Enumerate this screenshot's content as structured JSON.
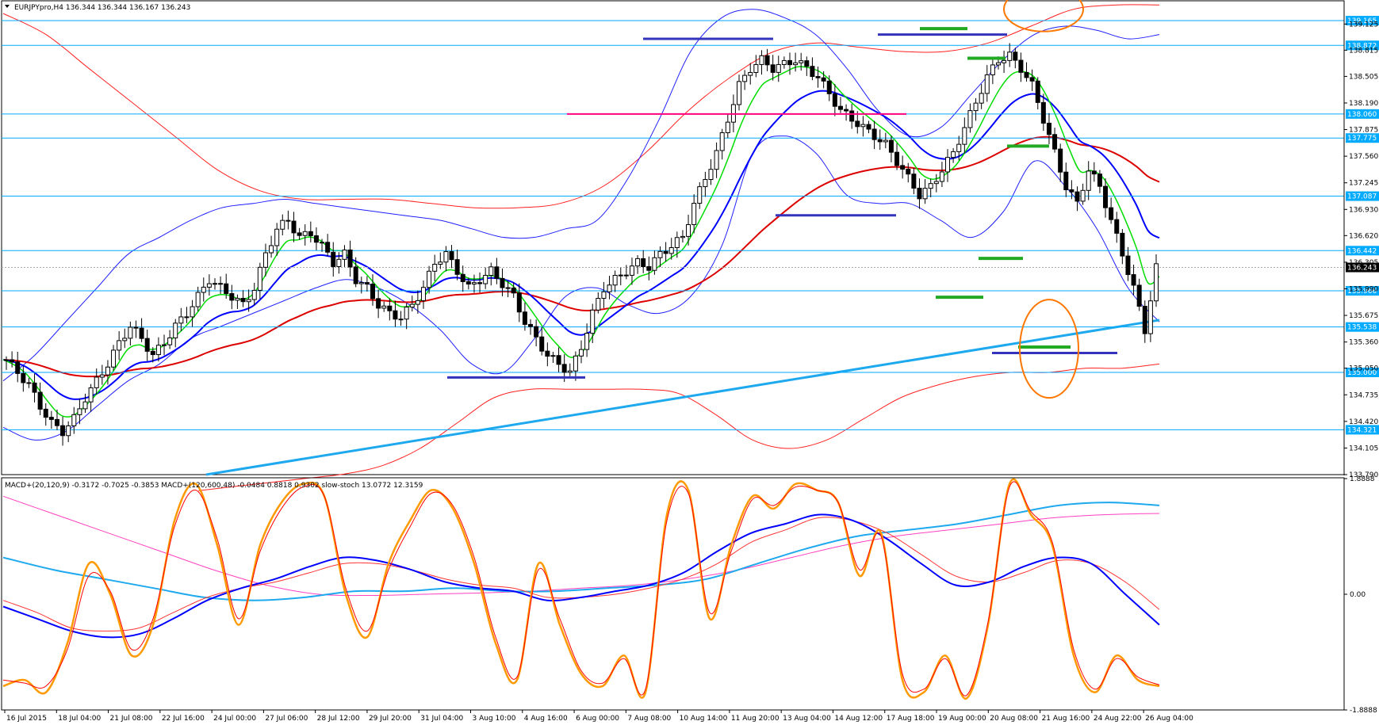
{
  "main_header": "EURJPYpro,H4  136.344 136.344 136.167 136.243",
  "indicator_header": "MACD+(20,120,9) -0.3172 -0.7025 -0.3853  MACD+(120,600,48) -0.0484 0.8818 0.9302  slow-stoch 13.0772 12.3159",
  "colors": {
    "background": "#ffffff",
    "bull_candle": "#ffffff",
    "bear_candle": "#000000",
    "hline": "#00aaff",
    "label_bg": "#00aaff",
    "ema_fast": "#00dd00",
    "ema_mid": "#0000ff",
    "ema_slow": "#dd0000",
    "ema_long": "#1ea9ef",
    "bollinger": "#2020ff",
    "envelope": "#ff2020",
    "support": "#3333bb",
    "target": "#22aa22",
    "pivot": "#ff0080",
    "circle": "#ff7700",
    "macd_fast": "#0000ff",
    "macd_signal": "#ff3333",
    "macd_slow": "#1ea9ef",
    "macd_slow_signal": "#ff40c0",
    "stoch_k": "#ff9900",
    "stoch_d": "#ff0000"
  },
  "chart_data": [
    {
      "type": "candlestick",
      "symbol": "EURJPYpro",
      "timeframe": "H4",
      "ylim": [
        133.79,
        139.4
      ],
      "yticks": [
        139.125,
        138.815,
        138.505,
        138.19,
        137.875,
        137.56,
        137.245,
        136.93,
        136.62,
        136.305,
        135.99,
        135.675,
        135.36,
        135.05,
        134.735,
        134.42,
        134.105,
        133.79
      ],
      "last_price": 136.243,
      "last_price_label": "136.243",
      "level_lines": [
        {
          "value": 139.165,
          "label": "139.165"
        },
        {
          "value": 138.872,
          "label": "138.872"
        },
        {
          "value": 138.06,
          "label": "138.060"
        },
        {
          "value": 137.775,
          "label": "137.775"
        },
        {
          "value": 137.087,
          "label": "137.087"
        },
        {
          "value": 136.442,
          "label": "136.442"
        },
        {
          "value": 135.966,
          "label": "135.966"
        },
        {
          "value": 135.538,
          "label": "135.538"
        },
        {
          "value": 135.0,
          "label": "135.000"
        },
        {
          "value": 134.321,
          "label": "134.321"
        }
      ],
      "x_labels": [
        "16 Jul 2015",
        "18 Jul 04:00",
        "21 Jul 08:00",
        "22 Jul 16:00",
        "24 Jul 00:00",
        "27 Jul 06:00",
        "28 Jul 12:00",
        "29 Jul 20:00",
        "31 Jul 04:00",
        "3 Aug 10:00",
        "4 Aug 16:00",
        "6 Aug 00:00",
        "7 Aug 08:00",
        "10 Aug 14:00",
        "11 Aug 20:00",
        "13 Aug 04:00",
        "14 Aug 12:00",
        "17 Aug 18:00",
        "19 Aug 00:00",
        "20 Aug 08:00",
        "21 Aug 16:00",
        "24 Aug 22:00",
        "26 Aug 04:00"
      ],
      "close_path": [
        135.15,
        135.0,
        134.85,
        134.6,
        134.4,
        134.3,
        134.45,
        134.7,
        134.9,
        135.1,
        135.35,
        135.55,
        135.4,
        135.2,
        135.35,
        135.55,
        135.7,
        135.9,
        136.1,
        136.0,
        135.9,
        135.8,
        136.0,
        136.4,
        136.7,
        136.8,
        136.6,
        136.65,
        136.5,
        136.3,
        136.4,
        136.1,
        136.0,
        135.8,
        135.7,
        135.65,
        135.8,
        136.0,
        136.3,
        136.4,
        136.2,
        136.0,
        136.1,
        136.2,
        136.05,
        135.9,
        135.6,
        135.4,
        135.2,
        135.1,
        135.0,
        135.3,
        135.7,
        136.0,
        136.1,
        136.2,
        136.3,
        136.25,
        136.4,
        136.5,
        136.6,
        137.0,
        137.3,
        137.6,
        138.0,
        138.4,
        138.6,
        138.7,
        138.6,
        138.65,
        138.7,
        138.6,
        138.5,
        138.3,
        138.1,
        138.0,
        137.9,
        137.8,
        137.7,
        137.5,
        137.3,
        137.1,
        137.2,
        137.4,
        137.6,
        137.9,
        138.2,
        138.5,
        138.7,
        138.75,
        138.6,
        138.4,
        138.0,
        137.6,
        137.2,
        137.0,
        137.4,
        137.2,
        136.8,
        136.4,
        136.0,
        135.5,
        136.24
      ],
      "bollinger_upper": [
        134.9,
        135.2,
        135.6,
        136.0,
        136.4,
        136.6,
        136.8,
        136.95,
        137.0,
        137.05,
        137.0,
        136.95,
        136.9,
        136.85,
        136.8,
        136.7,
        136.6,
        136.6,
        136.7,
        136.8,
        137.3,
        138.0,
        138.8,
        139.2,
        139.3,
        139.2,
        139.0,
        138.6,
        138.1,
        137.8,
        137.9,
        138.3,
        138.7,
        139.0,
        139.1,
        139.05,
        138.95,
        139.0
      ],
      "bollinger_lower": [
        134.35,
        134.2,
        134.3,
        134.6,
        134.9,
        135.1,
        135.4,
        135.55,
        135.7,
        135.85,
        136.0,
        136.1,
        136.0,
        135.8,
        135.5,
        135.1,
        135.0,
        135.4,
        135.9,
        136.0,
        135.8,
        135.7,
        135.9,
        136.5,
        137.6,
        137.8,
        137.6,
        137.1,
        137.0,
        137.0,
        136.8,
        136.6,
        136.9,
        137.5,
        137.2,
        136.7,
        136.0,
        135.6
      ],
      "envelope_upper": [
        139.25,
        139.0,
        138.6,
        138.2,
        137.8,
        137.4,
        137.15,
        137.05,
        137.05,
        137.05,
        137.0,
        136.95,
        136.95,
        137.0,
        137.2,
        137.6,
        138.1,
        138.5,
        138.8,
        138.9,
        138.85,
        138.8,
        138.8,
        138.9,
        139.1,
        139.3,
        139.35,
        139.35
      ],
      "envelope_lower": [
        133.6,
        133.65,
        133.7,
        133.75,
        133.8,
        133.9,
        134.1,
        134.4,
        134.7,
        134.8,
        134.8,
        134.8,
        134.8,
        134.75,
        134.5,
        134.2,
        134.1,
        134.2,
        134.45,
        134.7,
        134.85,
        134.95,
        135.0,
        135.0,
        135.05,
        135.05,
        135.1
      ]
    },
    {
      "type": "line",
      "name": "MACD+ / slow-stoch",
      "ylim": [
        -1.8888,
        1.8888
      ],
      "yticks": [
        1.8888,
        0.0,
        -1.8888
      ],
      "ytick_labels": [
        "1.8888",
        "0.00",
        "-1.8888"
      ],
      "stoch_k": [
        -1.5,
        -1.4,
        -1.6,
        -0.8,
        0.5,
        0.0,
        -1.0,
        -0.5,
        1.2,
        1.8,
        0.8,
        -0.5,
        0.8,
        1.5,
        1.8,
        1.6,
        0.0,
        -0.7,
        0.5,
        1.2,
        1.7,
        1.4,
        0.5,
        -0.8,
        -1.4,
        0.5,
        -0.5,
        -1.3,
        -1.5,
        -1.0,
        -1.6,
        1.3,
        1.7,
        -0.4,
        0.8,
        1.6,
        1.4,
        1.8,
        1.7,
        1.5,
        0.3,
        1.0,
        -1.4,
        -1.6,
        -1.0,
        -1.7,
        -0.5,
        1.8,
        1.3,
        0.8,
        -1.0,
        -1.6,
        -1.0,
        -1.4,
        -1.5
      ],
      "stoch_d": [
        -1.4,
        -1.45,
        -1.5,
        -0.9,
        0.3,
        0.05,
        -0.9,
        -0.4,
        1.1,
        1.7,
        0.9,
        -0.4,
        0.7,
        1.4,
        1.75,
        1.6,
        0.1,
        -0.6,
        0.4,
        1.1,
        1.65,
        1.45,
        0.6,
        -0.7,
        -1.35,
        0.4,
        -0.4,
        -1.25,
        -1.45,
        -1.05,
        -1.55,
        1.2,
        1.65,
        -0.3,
        0.7,
        1.55,
        1.45,
        1.75,
        1.7,
        1.5,
        0.4,
        0.95,
        -1.3,
        -1.55,
        -1.05,
        -1.65,
        -0.45,
        1.75,
        1.35,
        0.85,
        -0.9,
        -1.55,
        -1.05,
        -1.35,
        -1.48
      ],
      "macd_fast": [
        -0.2,
        -0.4,
        -0.6,
        -0.7,
        -0.65,
        -0.4,
        -0.1,
        0.1,
        0.25,
        0.45,
        0.6,
        0.55,
        0.4,
        0.2,
        0.1,
        0.05,
        -0.1,
        -0.05,
        0.05,
        0.15,
        0.35,
        0.7,
        1.0,
        1.15,
        1.3,
        1.2,
        0.9,
        0.5,
        0.15,
        0.2,
        0.45,
        0.6,
        0.5,
        0.0,
        -0.5
      ],
      "macd_signal": [
        -0.1,
        -0.3,
        -0.55,
        -0.6,
        -0.55,
        -0.3,
        -0.05,
        0.1,
        0.2,
        0.35,
        0.5,
        0.5,
        0.4,
        0.25,
        0.15,
        0.1,
        -0.05,
        -0.05,
        0.0,
        0.1,
        0.25,
        0.5,
        0.85,
        1.05,
        1.25,
        1.2,
        1.0,
        0.65,
        0.3,
        0.2,
        0.35,
        0.55,
        0.5,
        0.2,
        -0.25
      ],
      "macd_slow": [
        0.6,
        0.4,
        0.25,
        0.1,
        -0.05,
        -0.1,
        -0.05,
        0.05,
        0.05,
        0.1,
        0.05,
        0.05,
        0.1,
        0.15,
        0.25,
        0.5,
        0.75,
        0.95,
        1.05,
        1.15,
        1.3,
        1.45,
        1.5,
        1.45
      ],
      "macd_slow_signal": [
        1.6,
        1.3,
        1.0,
        0.7,
        0.4,
        0.15,
        0.0,
        -0.02,
        0.0,
        0.02,
        0.05,
        0.1,
        0.15,
        0.25,
        0.4,
        0.6,
        0.8,
        0.95,
        1.05,
        1.15,
        1.25,
        1.3,
        1.32
      ]
    }
  ]
}
